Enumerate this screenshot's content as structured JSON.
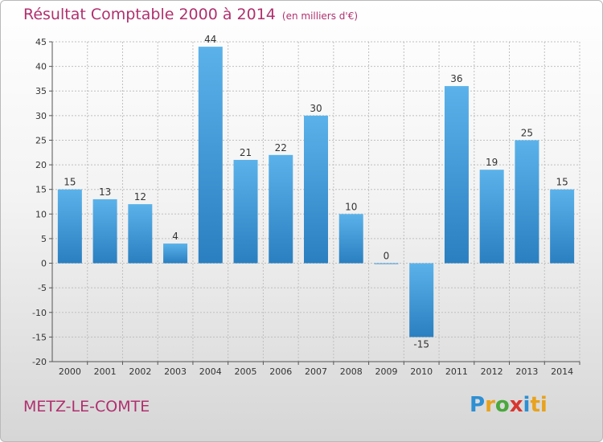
{
  "header": {
    "title": "Résultat Comptable 2000 à 2014",
    "unit": "(en milliers d'€)"
  },
  "footer": {
    "place": "METZ-LE-COMTE",
    "brand": "Proxiti",
    "brand_letters": [
      "P",
      "r",
      "o",
      "x",
      "i",
      "ti"
    ]
  },
  "colors": {
    "title": "#b0306e",
    "bar_light": "#5bb2ea",
    "bar_dark": "#2a7fc0",
    "grid": "#bfbfbf"
  },
  "chart_data": {
    "type": "bar",
    "title": "Résultat Comptable 2000 à 2014",
    "subtitle": "(en milliers d'€)",
    "categories": [
      "2000",
      "2001",
      "2002",
      "2003",
      "2004",
      "2005",
      "2006",
      "2007",
      "2008",
      "2009",
      "2010",
      "2011",
      "2012",
      "2013",
      "2014"
    ],
    "values": [
      15,
      13,
      12,
      4,
      44,
      21,
      22,
      30,
      10,
      0,
      -15,
      36,
      19,
      25,
      15
    ],
    "value_labels": [
      "15",
      "13",
      "12",
      "4",
      "44",
      "21",
      "22",
      "30",
      "10",
      "0",
      "-15",
      "36",
      "19",
      "25",
      "15"
    ],
    "ylim": [
      -20,
      45
    ],
    "yticks": [
      -20,
      -15,
      -10,
      -5,
      0,
      5,
      10,
      15,
      20,
      25,
      30,
      35,
      40,
      45
    ],
    "ytick_labels": [
      "-20",
      "-15",
      "-10",
      "-5",
      "0",
      "5",
      "10",
      "15",
      "20",
      "25",
      "30",
      "35",
      "40",
      "45"
    ],
    "grid": true,
    "legend": "none"
  }
}
